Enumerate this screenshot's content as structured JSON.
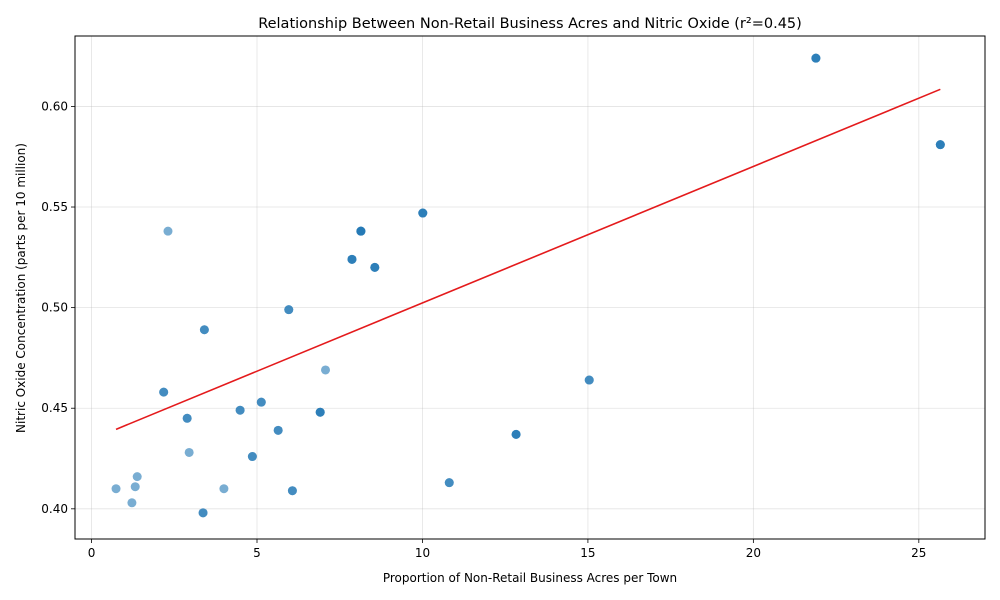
{
  "chart_data": {
    "type": "scatter",
    "title": "Relationship Between Non-Retail Business Acres and Nitric Oxide (r²=0.45)",
    "xlabel": "Proportion of Non-Retail Business Acres per Town",
    "ylabel": "Nitric Oxide Concentration (parts per 10 million)",
    "xlim": [
      -0.5,
      27.0
    ],
    "ylim": [
      0.385,
      0.635
    ],
    "xticks": [
      0,
      5,
      10,
      15,
      20,
      25
    ],
    "yticks": [
      0.4,
      0.45,
      0.5,
      0.55,
      0.6
    ],
    "xtick_labels": [
      "0",
      "5",
      "10",
      "15",
      "20",
      "25"
    ],
    "ytick_labels": [
      "0.40",
      "0.45",
      "0.50",
      "0.55",
      "0.60"
    ],
    "grid": true,
    "point_color": "#1f77b4",
    "line_color": "#e41a1c",
    "points": [
      {
        "x": 21.89,
        "y": 0.624
      },
      {
        "x": 21.89,
        "y": 0.624
      },
      {
        "x": 21.89,
        "y": 0.624
      },
      {
        "x": 25.65,
        "y": 0.581
      },
      {
        "x": 25.65,
        "y": 0.581
      },
      {
        "x": 25.65,
        "y": 0.581
      },
      {
        "x": 2.31,
        "y": 0.538
      },
      {
        "x": 8.14,
        "y": 0.538
      },
      {
        "x": 8.14,
        "y": 0.538
      },
      {
        "x": 8.14,
        "y": 0.538
      },
      {
        "x": 8.14,
        "y": 0.538
      },
      {
        "x": 10.01,
        "y": 0.547
      },
      {
        "x": 10.01,
        "y": 0.547
      },
      {
        "x": 10.01,
        "y": 0.547
      },
      {
        "x": 7.87,
        "y": 0.524
      },
      {
        "x": 7.87,
        "y": 0.524
      },
      {
        "x": 7.87,
        "y": 0.524
      },
      {
        "x": 8.56,
        "y": 0.52
      },
      {
        "x": 8.56,
        "y": 0.52
      },
      {
        "x": 8.56,
        "y": 0.52
      },
      {
        "x": 5.96,
        "y": 0.499
      },
      {
        "x": 5.96,
        "y": 0.499
      },
      {
        "x": 3.41,
        "y": 0.489
      },
      {
        "x": 3.41,
        "y": 0.489
      },
      {
        "x": 7.07,
        "y": 0.469
      },
      {
        "x": 15.04,
        "y": 0.464
      },
      {
        "x": 15.04,
        "y": 0.464
      },
      {
        "x": 2.18,
        "y": 0.458
      },
      {
        "x": 2.18,
        "y": 0.458
      },
      {
        "x": 5.13,
        "y": 0.453
      },
      {
        "x": 5.13,
        "y": 0.453
      },
      {
        "x": 4.49,
        "y": 0.449
      },
      {
        "x": 4.49,
        "y": 0.449
      },
      {
        "x": 6.91,
        "y": 0.448
      },
      {
        "x": 6.91,
        "y": 0.448
      },
      {
        "x": 6.91,
        "y": 0.448
      },
      {
        "x": 2.89,
        "y": 0.445
      },
      {
        "x": 2.89,
        "y": 0.445
      },
      {
        "x": 5.64,
        "y": 0.439
      },
      {
        "x": 5.64,
        "y": 0.439
      },
      {
        "x": 12.83,
        "y": 0.437
      },
      {
        "x": 12.83,
        "y": 0.437
      },
      {
        "x": 12.83,
        "y": 0.437
      },
      {
        "x": 2.95,
        "y": 0.428
      },
      {
        "x": 4.86,
        "y": 0.426
      },
      {
        "x": 4.86,
        "y": 0.426
      },
      {
        "x": 1.38,
        "y": 0.416
      },
      {
        "x": 10.81,
        "y": 0.413
      },
      {
        "x": 10.81,
        "y": 0.413
      },
      {
        "x": 0.74,
        "y": 0.41
      },
      {
        "x": 1.32,
        "y": 0.411
      },
      {
        "x": 4.0,
        "y": 0.41
      },
      {
        "x": 6.07,
        "y": 0.409
      },
      {
        "x": 6.07,
        "y": 0.409
      },
      {
        "x": 1.22,
        "y": 0.403
      },
      {
        "x": 3.37,
        "y": 0.398
      },
      {
        "x": 3.37,
        "y": 0.398
      }
    ],
    "regression_line": {
      "x": [
        0.74,
        25.65
      ],
      "y": [
        0.4395,
        0.6085
      ]
    }
  }
}
